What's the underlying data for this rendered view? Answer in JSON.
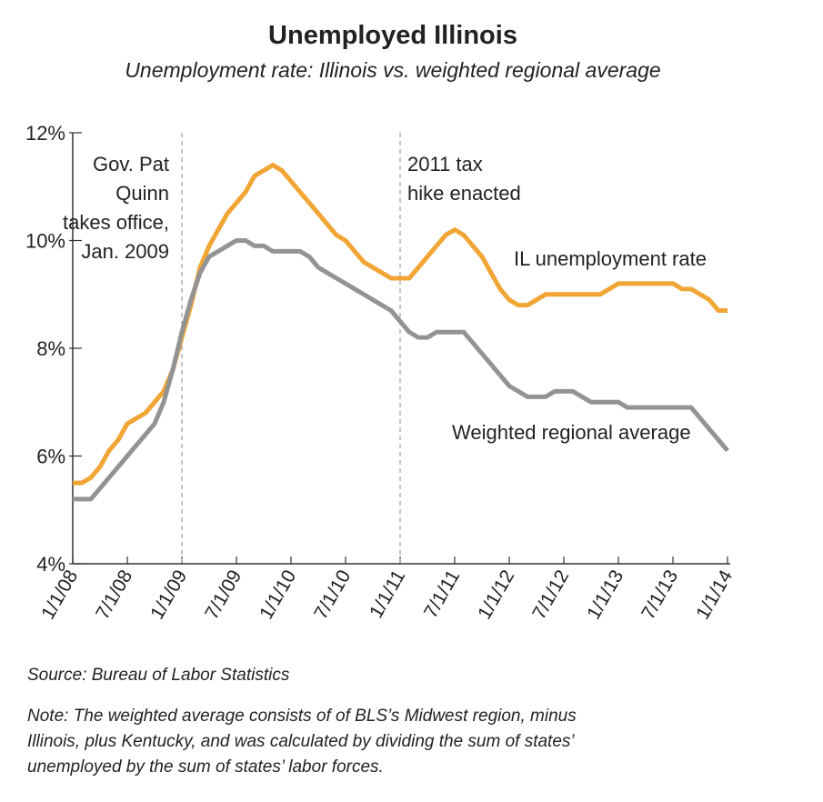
{
  "chart_data": {
    "type": "line",
    "title": "Unemployed Illinois",
    "subtitle": "Unemployment rate: Illinois vs. weighted regional average",
    "categories": [
      "1/1/08",
      null,
      null,
      null,
      null,
      null,
      "7/1/08",
      null,
      null,
      null,
      null,
      null,
      "1/1/09",
      null,
      null,
      null,
      null,
      null,
      "7/1/09",
      null,
      null,
      null,
      null,
      null,
      "1/1/10",
      null,
      null,
      null,
      null,
      null,
      "7/1/10",
      null,
      null,
      null,
      null,
      null,
      "1/1/11",
      null,
      null,
      null,
      null,
      null,
      "7/1/11",
      null,
      null,
      null,
      null,
      null,
      "1/1/12",
      null,
      null,
      null,
      null,
      null,
      "7/1/12",
      null,
      null,
      null,
      null,
      null,
      "1/1/13",
      null,
      null,
      null,
      null,
      null,
      "7/1/13",
      null,
      null,
      null,
      null,
      null,
      "1/1/14"
    ],
    "series": [
      {
        "name": "IL unemployment rate",
        "color": "#f0a535",
        "values": [
          5.5,
          5.5,
          5.6,
          5.8,
          6.1,
          6.3,
          6.6,
          6.7,
          6.8,
          7.0,
          7.2,
          7.6,
          8.2,
          8.8,
          9.5,
          9.9,
          10.2,
          10.5,
          10.7,
          10.9,
          11.2,
          11.3,
          11.4,
          11.3,
          11.1,
          10.9,
          10.7,
          10.5,
          10.3,
          10.1,
          10.0,
          9.8,
          9.6,
          9.5,
          9.4,
          9.3,
          9.3,
          9.3,
          9.5,
          9.7,
          9.9,
          10.1,
          10.2,
          10.1,
          9.9,
          9.7,
          9.4,
          9.1,
          8.9,
          8.8,
          8.8,
          8.9,
          9.0,
          9.0,
          9.0,
          9.0,
          9.0,
          9.0,
          9.0,
          9.1,
          9.2,
          9.2,
          9.2,
          9.2,
          9.2,
          9.2,
          9.2,
          9.1,
          9.1,
          9.0,
          8.9,
          8.7,
          8.7
        ]
      },
      {
        "name": "Weighted regional average",
        "color": "#939393",
        "values": [
          5.2,
          5.2,
          5.2,
          5.4,
          5.6,
          5.8,
          6.0,
          6.2,
          6.4,
          6.6,
          7.0,
          7.6,
          8.3,
          8.9,
          9.4,
          9.7,
          9.8,
          9.9,
          10.0,
          10.0,
          9.9,
          9.9,
          9.8,
          9.8,
          9.8,
          9.8,
          9.7,
          9.5,
          9.4,
          9.3,
          9.2,
          9.1,
          9.0,
          8.9,
          8.8,
          8.7,
          8.5,
          8.3,
          8.2,
          8.2,
          8.3,
          8.3,
          8.3,
          8.3,
          8.1,
          7.9,
          7.7,
          7.5,
          7.3,
          7.2,
          7.1,
          7.1,
          7.1,
          7.2,
          7.2,
          7.2,
          7.1,
          7.0,
          7.0,
          7.0,
          7.0,
          6.9,
          6.9,
          6.9,
          6.9,
          6.9,
          6.9,
          6.9,
          6.9,
          6.7,
          6.5,
          6.3,
          6.1
        ]
      }
    ],
    "ylim": [
      4,
      12
    ],
    "yticks": [
      {
        "value": 4,
        "label": "4%"
      },
      {
        "value": 6,
        "label": "6%"
      },
      {
        "value": 8,
        "label": "8%"
      },
      {
        "value": 10,
        "label": "10%"
      },
      {
        "value": 12,
        "label": "12%"
      }
    ],
    "grid": false,
    "annotations": [
      {
        "x": "1/1/09",
        "text": [
          "Gov. Pat",
          "Quinn",
          "takes office,",
          "Jan. 2009"
        ]
      },
      {
        "x": "1/1/11",
        "text": [
          "2011 tax",
          "hike enacted"
        ]
      }
    ],
    "source": "Source: Bureau of Labor Statistics",
    "note": [
      "Note: The weighted average consists of of BLS’s Midwest region, minus",
      "Illinois, plus Kentucky, and was calculated by dividing the sum of states’",
      "unemployed by the sum of states’ labor forces."
    ]
  }
}
